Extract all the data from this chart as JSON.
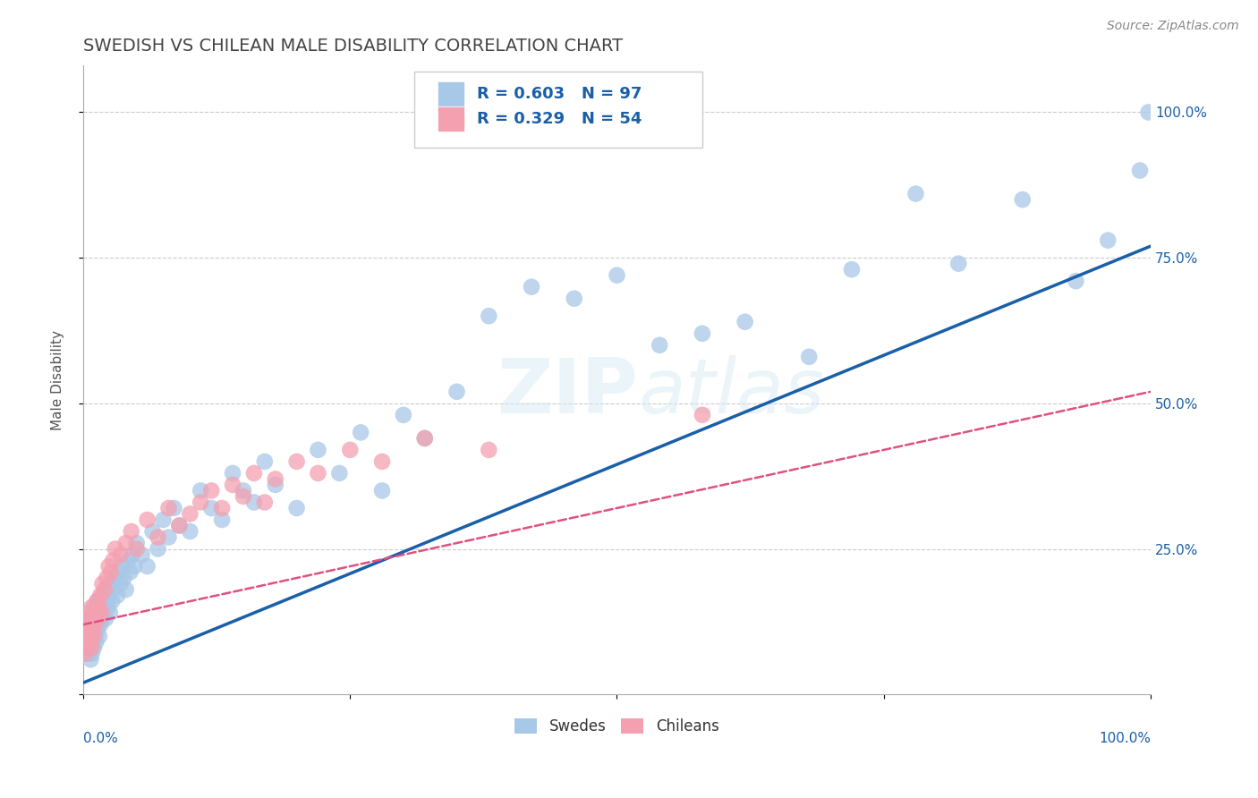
{
  "title": "SWEDISH VS CHILEAN MALE DISABILITY CORRELATION CHART",
  "source": "Source: ZipAtlas.com",
  "ylabel": "Male Disability",
  "watermark": "ZIPatlas",
  "swedes_R": 0.603,
  "swedes_N": 97,
  "chileans_R": 0.329,
  "chileans_N": 54,
  "swede_color": "#a8c8e8",
  "chilean_color": "#f4a0b0",
  "swede_line_color": "#1a5fa8",
  "chilean_line_color": "#e05080",
  "bg_color": "#ffffff",
  "legend_text_color": "#1a5fa8",
  "axis_label_color": "#1a5fa8",
  "title_color": "#444444",
  "ytick_labels_right": [
    "25.0%",
    "50.0%",
    "75.0%",
    "100.0%"
  ],
  "ytick_vals": [
    0.25,
    0.5,
    0.75,
    1.0
  ],
  "swedes_x": [
    0.002,
    0.003,
    0.003,
    0.004,
    0.004,
    0.005,
    0.005,
    0.005,
    0.006,
    0.006,
    0.007,
    0.007,
    0.007,
    0.008,
    0.008,
    0.008,
    0.009,
    0.009,
    0.01,
    0.01,
    0.01,
    0.011,
    0.011,
    0.012,
    0.012,
    0.013,
    0.013,
    0.014,
    0.015,
    0.015,
    0.016,
    0.017,
    0.018,
    0.018,
    0.019,
    0.02,
    0.021,
    0.022,
    0.023,
    0.024,
    0.025,
    0.026,
    0.027,
    0.028,
    0.03,
    0.032,
    0.033,
    0.035,
    0.036,
    0.038,
    0.04,
    0.042,
    0.044,
    0.046,
    0.048,
    0.05,
    0.055,
    0.06,
    0.065,
    0.07,
    0.075,
    0.08,
    0.085,
    0.09,
    0.1,
    0.11,
    0.12,
    0.13,
    0.14,
    0.15,
    0.16,
    0.17,
    0.18,
    0.2,
    0.22,
    0.24,
    0.26,
    0.28,
    0.3,
    0.32,
    0.35,
    0.38,
    0.42,
    0.46,
    0.5,
    0.54,
    0.58,
    0.62,
    0.68,
    0.72,
    0.78,
    0.82,
    0.88,
    0.93,
    0.96,
    0.99,
    0.998
  ],
  "swedes_y": [
    0.1,
    0.12,
    0.08,
    0.09,
    0.11,
    0.07,
    0.1,
    0.13,
    0.08,
    0.11,
    0.09,
    0.12,
    0.06,
    0.1,
    0.13,
    0.07,
    0.09,
    0.11,
    0.08,
    0.12,
    0.15,
    0.1,
    0.13,
    0.09,
    0.14,
    0.11,
    0.16,
    0.12,
    0.1,
    0.14,
    0.12,
    0.15,
    0.13,
    0.17,
    0.14,
    0.16,
    0.13,
    0.18,
    0.15,
    0.17,
    0.14,
    0.19,
    0.16,
    0.18,
    0.2,
    0.17,
    0.21,
    0.19,
    0.22,
    0.2,
    0.18,
    0.23,
    0.21,
    0.24,
    0.22,
    0.26,
    0.24,
    0.22,
    0.28,
    0.25,
    0.3,
    0.27,
    0.32,
    0.29,
    0.28,
    0.35,
    0.32,
    0.3,
    0.38,
    0.35,
    0.33,
    0.4,
    0.36,
    0.32,
    0.42,
    0.38,
    0.45,
    0.35,
    0.48,
    0.44,
    0.52,
    0.65,
    0.7,
    0.68,
    0.72,
    0.6,
    0.62,
    0.64,
    0.58,
    0.73,
    0.86,
    0.74,
    0.85,
    0.71,
    0.78,
    0.9,
    1.0
  ],
  "chileans_x": [
    0.002,
    0.003,
    0.003,
    0.004,
    0.004,
    0.005,
    0.005,
    0.006,
    0.006,
    0.007,
    0.007,
    0.008,
    0.008,
    0.009,
    0.009,
    0.01,
    0.011,
    0.012,
    0.013,
    0.014,
    0.015,
    0.016,
    0.017,
    0.018,
    0.02,
    0.022,
    0.024,
    0.026,
    0.028,
    0.03,
    0.035,
    0.04,
    0.045,
    0.05,
    0.06,
    0.07,
    0.08,
    0.09,
    0.1,
    0.11,
    0.12,
    0.13,
    0.14,
    0.15,
    0.16,
    0.17,
    0.18,
    0.2,
    0.22,
    0.25,
    0.28,
    0.32,
    0.38,
    0.58
  ],
  "chileans_y": [
    0.07,
    0.09,
    0.11,
    0.08,
    0.12,
    0.1,
    0.13,
    0.09,
    0.14,
    0.1,
    0.12,
    0.08,
    0.15,
    0.11,
    0.13,
    0.1,
    0.12,
    0.14,
    0.16,
    0.13,
    0.15,
    0.17,
    0.14,
    0.19,
    0.18,
    0.2,
    0.22,
    0.21,
    0.23,
    0.25,
    0.24,
    0.26,
    0.28,
    0.25,
    0.3,
    0.27,
    0.32,
    0.29,
    0.31,
    0.33,
    0.35,
    0.32,
    0.36,
    0.34,
    0.38,
    0.33,
    0.37,
    0.4,
    0.38,
    0.42,
    0.4,
    0.44,
    0.42,
    0.48
  ]
}
